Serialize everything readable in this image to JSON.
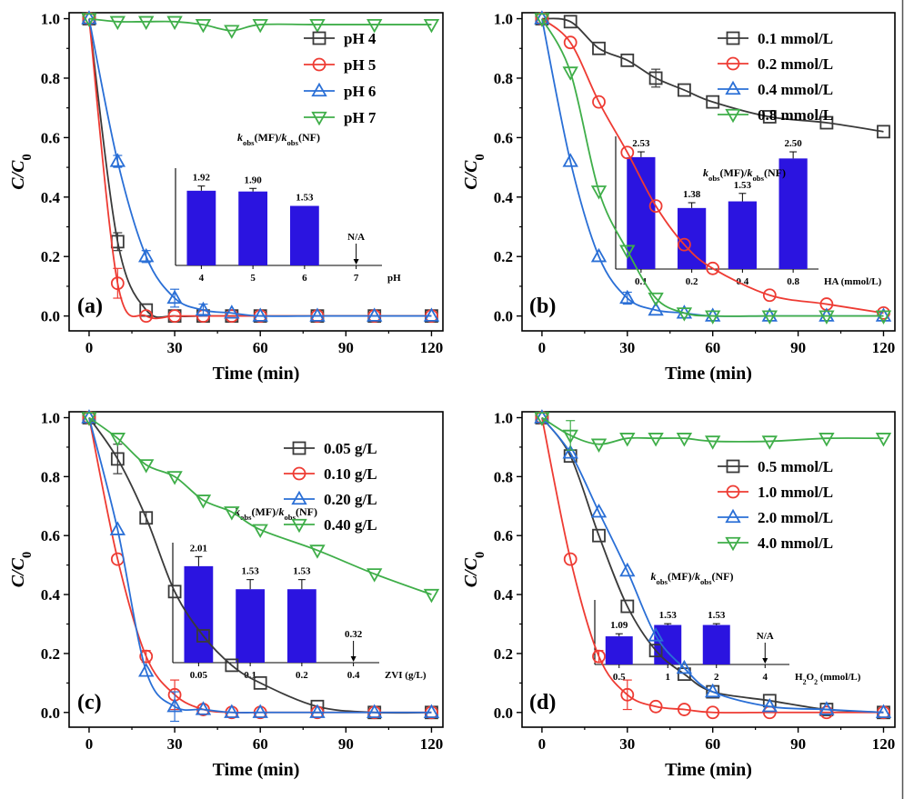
{
  "figure": {
    "series_styles": [
      {
        "color": "#3a3a3a",
        "marker": "square"
      },
      {
        "color": "#ee3b33",
        "marker": "circle"
      },
      {
        "color": "#2a6fd6",
        "marker": "triangle-up"
      },
      {
        "color": "#3fae49",
        "marker": "triangle-down"
      }
    ],
    "bar_color": "#2b14e0"
  },
  "chart_data": [
    {
      "type": "line",
      "panel_label": "(a)",
      "xlabel": "Time (min)",
      "ylabel": "C/C0",
      "ylabel_parts": [
        "C/C",
        "0"
      ],
      "xlim": [
        -7,
        124
      ],
      "ylim": [
        -0.05,
        1.02
      ],
      "xticks": [
        0,
        30,
        60,
        90,
        120
      ],
      "yticks": [
        0.0,
        0.2,
        0.4,
        0.6,
        0.8,
        1.0
      ],
      "ytick_labels": [
        "0.0",
        "0.2",
        "0.4",
        "0.6",
        "0.8",
        "1.0"
      ],
      "legend_position": "top-right",
      "series": [
        {
          "name": "pH 4",
          "x": [
            0,
            10,
            20,
            30,
            40,
            50,
            60,
            80,
            100,
            120
          ],
          "y": [
            1.0,
            0.25,
            0.02,
            0.0,
            0.0,
            0.0,
            0.0,
            0.0,
            0.0,
            0.0
          ],
          "yerr": [
            0,
            0.03,
            0.01,
            0,
            0,
            0,
            0,
            0,
            0,
            0
          ]
        },
        {
          "name": "pH 5",
          "x": [
            0,
            10,
            20,
            30,
            40,
            50,
            60,
            80,
            100,
            120
          ],
          "y": [
            1.0,
            0.11,
            0.0,
            0.0,
            0.0,
            0.0,
            0.0,
            0.0,
            0.0,
            0.0
          ],
          "yerr": [
            0,
            0.05,
            0,
            0,
            0,
            0,
            0,
            0,
            0,
            0
          ]
        },
        {
          "name": "pH 6",
          "x": [
            0,
            10,
            20,
            30,
            40,
            50,
            60,
            80,
            100,
            120
          ],
          "y": [
            1.0,
            0.52,
            0.2,
            0.06,
            0.02,
            0.01,
            0.0,
            0.0,
            0.0,
            0.0
          ],
          "yerr": [
            0,
            0.02,
            0.02,
            0.03,
            0.02,
            0.01,
            0,
            0,
            0,
            0
          ]
        },
        {
          "name": "pH 7",
          "x": [
            0,
            10,
            20,
            30,
            40,
            50,
            60,
            80,
            100,
            120
          ],
          "y": [
            1.0,
            0.99,
            0.99,
            0.99,
            0.98,
            0.96,
            0.98,
            0.98,
            0.98,
            0.98
          ],
          "yerr": [
            0,
            0.01,
            0.01,
            0.01,
            0.01,
            0.01,
            0.01,
            0.01,
            0.01,
            0.01
          ]
        }
      ],
      "inset": {
        "title_parts": [
          "k",
          "obs",
          "(MF)/",
          "k",
          "obs",
          "(NF)"
        ],
        "categories": [
          "4",
          "5",
          "6",
          "7"
        ],
        "values": [
          1.92,
          1.9,
          1.53,
          null
        ],
        "value_labels": [
          "1.92",
          "1.90",
          "1.53",
          "N/A"
        ],
        "errors": [
          0.12,
          0.08,
          0.0,
          0
        ],
        "xlabel": "pH",
        "ymax": 2.5
      }
    },
    {
      "type": "line",
      "panel_label": "(b)",
      "xlabel": "Time (min)",
      "ylabel": "C/C0",
      "ylabel_parts": [
        "C/C",
        "0"
      ],
      "xlim": [
        -7,
        124
      ],
      "ylim": [
        -0.05,
        1.02
      ],
      "xticks": [
        0,
        30,
        60,
        90,
        120
      ],
      "yticks": [
        0.0,
        0.2,
        0.4,
        0.6,
        0.8,
        1.0
      ],
      "ytick_labels": [
        "0.0",
        "0.2",
        "0.4",
        "0.6",
        "0.8",
        "1.0"
      ],
      "legend_position": "top-right",
      "series": [
        {
          "name": "0.1 mmol/L",
          "x": [
            0,
            10,
            20,
            30,
            40,
            50,
            60,
            80,
            100,
            120
          ],
          "y": [
            1.0,
            0.99,
            0.9,
            0.86,
            0.8,
            0.76,
            0.72,
            0.67,
            0.65,
            0.62
          ],
          "yerr": [
            0,
            0.01,
            0.01,
            0.01,
            0.03,
            0.01,
            0.01,
            0.01,
            0.01,
            0.01
          ]
        },
        {
          "name": "0.2 mmol/L",
          "x": [
            0,
            10,
            20,
            30,
            40,
            50,
            60,
            80,
            100,
            120
          ],
          "y": [
            1.0,
            0.92,
            0.72,
            0.55,
            0.37,
            0.24,
            0.16,
            0.07,
            0.04,
            0.01
          ],
          "yerr": [
            0,
            0.01,
            0.01,
            0.01,
            0.01,
            0.01,
            0.01,
            0.01,
            0.01,
            0.01
          ]
        },
        {
          "name": "0.4 mmol/L",
          "x": [
            0,
            10,
            20,
            30,
            40,
            50,
            60,
            80,
            100,
            120
          ],
          "y": [
            1.0,
            0.52,
            0.2,
            0.06,
            0.02,
            0.01,
            0.0,
            0.0,
            0.0,
            0.0
          ],
          "yerr": [
            0,
            0.01,
            0.01,
            0.02,
            0.01,
            0.01,
            0,
            0,
            0,
            0
          ]
        },
        {
          "name": "0.8 mmol/L",
          "x": [
            0,
            10,
            20,
            30,
            40,
            50,
            60,
            80,
            100,
            120
          ],
          "y": [
            1.0,
            0.82,
            0.42,
            0.22,
            0.06,
            0.01,
            0.0,
            0.0,
            0.0,
            0.0
          ],
          "yerr": [
            0,
            0.01,
            0.01,
            0.01,
            0.01,
            0.01,
            0,
            0,
            0,
            0
          ]
        }
      ],
      "inset": {
        "title_parts": [
          "k",
          "obs",
          "(MF)/",
          "k",
          "obs",
          "(NF)"
        ],
        "categories": [
          "0.1",
          "0.2",
          "0.4",
          "0.8"
        ],
        "values": [
          2.53,
          1.38,
          1.53,
          2.5
        ],
        "value_labels": [
          "2.53",
          "1.38",
          "1.53",
          "2.50"
        ],
        "errors": [
          0.12,
          0.12,
          0.18,
          0.15
        ],
        "xlabel": "HA (mmol/L)",
        "ymax": 3.0
      }
    },
    {
      "type": "line",
      "panel_label": "(c)",
      "xlabel": "Time (min)",
      "ylabel": "C/C0",
      "ylabel_parts": [
        "C/C",
        "0"
      ],
      "xlim": [
        -7,
        124
      ],
      "ylim": [
        -0.05,
        1.02
      ],
      "xticks": [
        0,
        30,
        60,
        90,
        120
      ],
      "yticks": [
        0.0,
        0.2,
        0.4,
        0.6,
        0.8,
        1.0
      ],
      "ytick_labels": [
        "0.0",
        "0.2",
        "0.4",
        "0.6",
        "0.8",
        "1.0"
      ],
      "legend_position": "top-right",
      "series": [
        {
          "name": "0.05 g/L",
          "x": [
            0,
            10,
            20,
            30,
            40,
            50,
            60,
            80,
            100,
            120
          ],
          "y": [
            1.0,
            0.86,
            0.66,
            0.41,
            0.26,
            0.16,
            0.1,
            0.02,
            0.0,
            0.0
          ],
          "yerr": [
            0,
            0.05,
            0.02,
            0.01,
            0.01,
            0.01,
            0.01,
            0.01,
            0,
            0
          ]
        },
        {
          "name": "0.10 g/L",
          "x": [
            0,
            10,
            20,
            30,
            40,
            50,
            60,
            80,
            100,
            120
          ],
          "y": [
            1.0,
            0.52,
            0.19,
            0.06,
            0.01,
            0.0,
            0.0,
            0.0,
            0.0,
            0.0
          ],
          "yerr": [
            0,
            0.01,
            0.02,
            0.05,
            0.01,
            0,
            0,
            0,
            0,
            0
          ]
        },
        {
          "name": "0.20 g/L",
          "x": [
            0,
            10,
            20,
            30,
            40,
            50,
            60,
            80,
            100,
            120
          ],
          "y": [
            1.0,
            0.62,
            0.14,
            0.02,
            0.01,
            0.0,
            0.0,
            0.0,
            0.0,
            0.0
          ],
          "yerr": [
            0,
            0.01,
            0.01,
            0.05,
            0.01,
            0,
            0,
            0,
            0,
            0
          ]
        },
        {
          "name": "0.40 g/L",
          "x": [
            0,
            10,
            20,
            30,
            40,
            50,
            60,
            80,
            100,
            120
          ],
          "y": [
            1.0,
            0.93,
            0.84,
            0.8,
            0.72,
            0.68,
            0.62,
            0.55,
            0.47,
            0.4
          ],
          "yerr": [
            0,
            0.01,
            0.01,
            0.01,
            0.01,
            0.01,
            0.01,
            0.01,
            0.01,
            0.01
          ]
        }
      ],
      "inset": {
        "title_parts": [
          "k",
          "obs",
          "(MF)/",
          "k",
          "obs",
          "(NF)"
        ],
        "categories": [
          "0.05",
          "0.1",
          "0.2",
          "0.4"
        ],
        "values": [
          2.01,
          1.53,
          1.53,
          0.32
        ],
        "value_labels": [
          "2.01",
          "1.53",
          "1.53",
          "0.32"
        ],
        "errors": [
          0.2,
          0.2,
          0.2,
          0
        ],
        "bar_hidden": [
          false,
          false,
          false,
          true
        ],
        "xlabel": "ZVI (g/L)",
        "ymax": 2.5
      }
    },
    {
      "type": "line",
      "panel_label": "(d)",
      "xlabel": "Time (min)",
      "ylabel": "C/C0",
      "ylabel_parts": [
        "C/C",
        "0"
      ],
      "xlim": [
        -7,
        124
      ],
      "ylim": [
        -0.05,
        1.02
      ],
      "xticks": [
        0,
        30,
        60,
        90,
        120
      ],
      "yticks": [
        0.0,
        0.2,
        0.4,
        0.6,
        0.8,
        1.0
      ],
      "ytick_labels": [
        "0.0",
        "0.2",
        "0.4",
        "0.6",
        "0.8",
        "1.0"
      ],
      "legend_position": "center-right",
      "series": [
        {
          "name": "0.5 mmol/L",
          "x": [
            0,
            10,
            20,
            30,
            40,
            50,
            60,
            80,
            100,
            120
          ],
          "y": [
            1.0,
            0.87,
            0.6,
            0.36,
            0.21,
            0.13,
            0.07,
            0.04,
            0.01,
            0.0
          ],
          "yerr": [
            0,
            0.01,
            0.01,
            0.01,
            0.01,
            0.01,
            0.01,
            0.01,
            0.01,
            0
          ]
        },
        {
          "name": "1.0 mmol/L",
          "x": [
            0,
            10,
            20,
            30,
            40,
            50,
            60,
            80,
            100,
            120
          ],
          "y": [
            1.0,
            0.52,
            0.19,
            0.06,
            0.02,
            0.01,
            0.0,
            0.0,
            0.0,
            0.0
          ],
          "yerr": [
            0,
            0.01,
            0.02,
            0.05,
            0.01,
            0.01,
            0,
            0,
            0,
            0
          ]
        },
        {
          "name": "2.0 mmol/L",
          "x": [
            0,
            10,
            20,
            30,
            40,
            50,
            60,
            80,
            100,
            120
          ],
          "y": [
            1.0,
            0.88,
            0.68,
            0.48,
            0.26,
            0.15,
            0.07,
            0.02,
            0.01,
            0.0
          ],
          "yerr": [
            0,
            0.01,
            0.01,
            0.01,
            0.01,
            0.01,
            0.01,
            0.01,
            0.01,
            0
          ]
        },
        {
          "name": "4.0 mmol/L",
          "x": [
            0,
            10,
            20,
            30,
            40,
            50,
            60,
            80,
            100,
            120
          ],
          "y": [
            1.0,
            0.94,
            0.91,
            0.93,
            0.93,
            0.93,
            0.92,
            0.92,
            0.93,
            0.93
          ],
          "yerr": [
            0,
            0.05,
            0.01,
            0.01,
            0.01,
            0.01,
            0.01,
            0.01,
            0.01,
            0.01
          ]
        }
      ],
      "inset": {
        "title_parts": [
          "k",
          "obs",
          "(MF)/",
          "k",
          "obs",
          "(NF)"
        ],
        "categories": [
          "0.5",
          "1",
          "2",
          "4"
        ],
        "values": [
          1.09,
          1.53,
          1.53,
          null
        ],
        "value_labels": [
          "1.09",
          "1.53",
          "1.53",
          "N/A"
        ],
        "errors": [
          0.1,
          0.05,
          0.05,
          0
        ],
        "xlabel": "H2O2 (mmol/L)",
        "xlabel_parts": [
          "H",
          "2",
          "O",
          "2",
          " (mmol/L)"
        ],
        "ymax": 2.5
      }
    }
  ]
}
